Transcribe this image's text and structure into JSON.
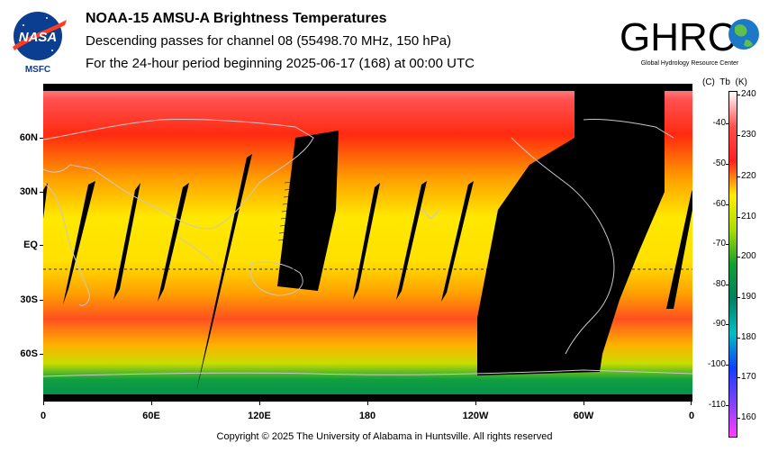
{
  "header": {
    "title": "NOAA-15 AMSU-A Brightness Temperatures",
    "subtitle_1": "Descending passes for channel 08 (55498.70 MHz, 150 hPa)",
    "subtitle_2": "For the 24-hour period beginning 2025-06-17 (168) at 00:00 UTC"
  },
  "logos": {
    "nasa": {
      "wordmark": "NASA",
      "caption": "MSFC"
    },
    "ghrc": {
      "wordmark": "GHRC",
      "caption": "Global Hydrology Resource Center"
    }
  },
  "map": {
    "lat_labels": [
      "60N",
      "30N",
      "EQ",
      "30S",
      "60S"
    ],
    "lon_labels": [
      "0",
      "60E",
      "120E",
      "180",
      "120W",
      "60W",
      "0"
    ],
    "no_data_color": "#000000",
    "coastline_color": "#c8c8c8"
  },
  "colorbar": {
    "units_celsius": "(C)",
    "variable": "Tb",
    "units_kelvin": "(K)",
    "celsius_ticks": [
      "-40",
      "-50",
      "-60",
      "-70",
      "-80",
      "-90",
      "-100",
      "-110"
    ],
    "kelvin_ticks": [
      "240",
      "230",
      "220",
      "210",
      "200",
      "190",
      "180",
      "170",
      "160"
    ],
    "kelvin_min": 155,
    "kelvin_max": 240,
    "colors": [
      "#ffffff",
      "#ff5050",
      "#ff2020",
      "#ffee00",
      "#aadd00",
      "#10a030",
      "#008060",
      "#00c0c0",
      "#1040ff",
      "#8040ff",
      "#ff40ff"
    ]
  },
  "footer": {
    "copyright": "Copyright © 2025 The University of Alabama in Huntsville.  All rights reserved"
  }
}
